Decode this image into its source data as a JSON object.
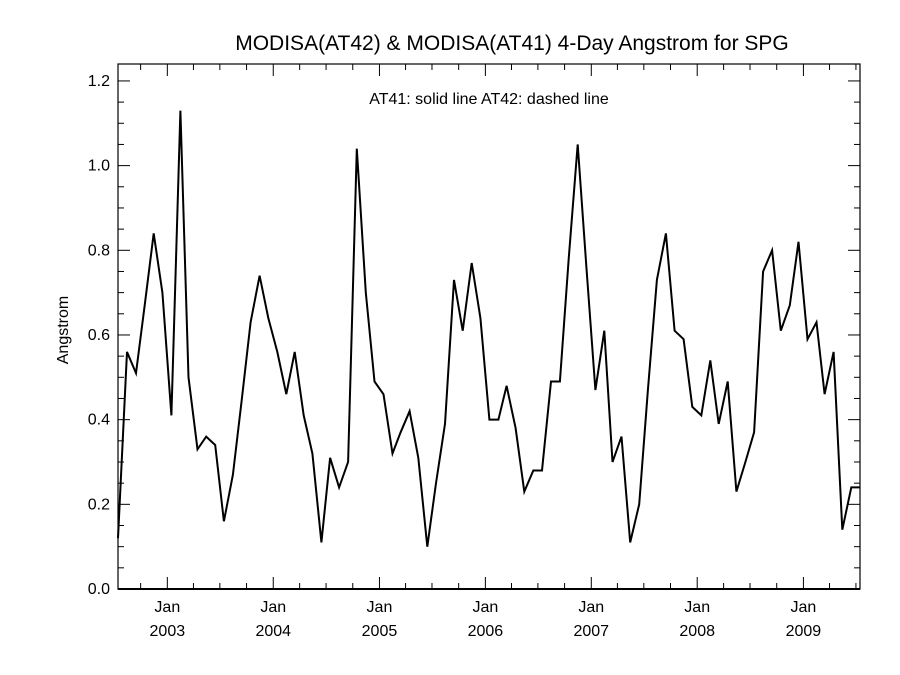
{
  "chart_data": {
    "type": "line",
    "title": "MODISA(AT42) & MODISA(AT41) 4-Day Angstrom for SPG",
    "ylabel": "Angstrom",
    "xlabel": "",
    "annotation": "AT41: solid line   AT42: dashed line",
    "ylim": [
      0.0,
      1.24
    ],
    "xlim": [
      "2002-07-15",
      "2009-07-15"
    ],
    "y_ticks": [
      "0.0",
      "0.2",
      "0.4",
      "0.6",
      "0.8",
      "1.0",
      "1.2"
    ],
    "x_ticks": [
      {
        "month": "Jan",
        "year": "2003",
        "date": "2003-01-01"
      },
      {
        "month": "Jan",
        "year": "2004",
        "date": "2004-01-01"
      },
      {
        "month": "Jan",
        "year": "2005",
        "date": "2005-01-01"
      },
      {
        "month": "Jan",
        "year": "2006",
        "date": "2006-01-01"
      },
      {
        "month": "Jan",
        "year": "2007",
        "date": "2007-01-01"
      },
      {
        "month": "Jan",
        "year": "2008",
        "date": "2008-01-01"
      },
      {
        "month": "Jan",
        "year": "2009",
        "date": "2009-01-01"
      }
    ],
    "series": [
      {
        "name": "AT41",
        "style": "solid",
        "color": "#000000",
        "x": [
          "2002-07-15",
          "2002-08-15",
          "2002-09-15",
          "2002-10-15",
          "2002-11-15",
          "2002-12-15",
          "2003-01-15",
          "2003-02-15",
          "2003-03-15",
          "2003-04-15",
          "2003-05-15",
          "2003-06-15",
          "2003-07-15",
          "2003-08-15",
          "2003-09-15",
          "2003-10-15",
          "2003-11-15",
          "2003-12-15",
          "2004-01-15",
          "2004-02-15",
          "2004-03-15",
          "2004-04-15",
          "2004-05-15",
          "2004-06-15",
          "2004-07-15",
          "2004-08-15",
          "2004-09-15",
          "2004-10-15",
          "2004-11-15",
          "2004-12-15",
          "2005-01-15",
          "2005-02-15",
          "2005-03-15",
          "2005-04-15",
          "2005-05-15",
          "2005-06-15",
          "2005-07-15",
          "2005-08-15",
          "2005-09-15",
          "2005-10-15",
          "2005-11-15",
          "2005-12-15",
          "2006-01-15",
          "2006-02-15",
          "2006-03-15",
          "2006-04-15",
          "2006-05-15",
          "2006-06-15",
          "2006-07-15",
          "2006-08-15",
          "2006-09-15",
          "2006-10-15",
          "2006-11-15",
          "2006-12-15",
          "2007-01-15",
          "2007-02-15",
          "2007-03-15",
          "2007-04-15",
          "2007-05-15",
          "2007-06-15",
          "2007-07-15",
          "2007-08-15",
          "2007-09-15",
          "2007-10-15",
          "2007-11-15",
          "2007-12-15",
          "2008-01-15",
          "2008-02-15",
          "2008-03-15",
          "2008-04-15",
          "2008-05-15",
          "2008-06-15",
          "2008-07-15",
          "2008-08-15",
          "2008-09-15",
          "2008-10-15",
          "2008-11-15",
          "2008-12-15",
          "2009-01-15",
          "2009-02-15",
          "2009-03-15",
          "2009-04-15",
          "2009-05-15",
          "2009-06-15",
          "2009-07-15"
        ],
        "values": [
          0.12,
          0.56,
          0.51,
          0.67,
          0.84,
          0.7,
          0.41,
          1.13,
          0.5,
          0.33,
          0.36,
          0.34,
          0.16,
          0.27,
          0.45,
          0.63,
          0.74,
          0.64,
          0.56,
          0.46,
          0.56,
          0.41,
          0.32,
          0.11,
          0.31,
          0.24,
          0.3,
          1.04,
          0.7,
          0.49,
          0.46,
          0.32,
          0.37,
          0.42,
          0.31,
          0.1,
          0.25,
          0.39,
          0.73,
          0.61,
          0.77,
          0.64,
          0.4,
          0.4,
          0.48,
          0.38,
          0.23,
          0.28,
          0.28,
          0.49,
          0.49,
          0.78,
          1.05,
          0.76,
          0.47,
          0.61,
          0.3,
          0.36,
          0.11,
          0.2,
          0.47,
          0.73,
          0.84,
          0.61,
          0.59,
          0.43,
          0.41,
          0.54,
          0.39,
          0.49,
          0.23,
          0.3,
          0.37,
          0.75,
          0.8,
          0.61,
          0.67,
          0.82,
          0.59,
          0.63,
          0.46,
          0.56,
          0.14,
          0.24,
          0.24
        ]
      }
    ]
  }
}
